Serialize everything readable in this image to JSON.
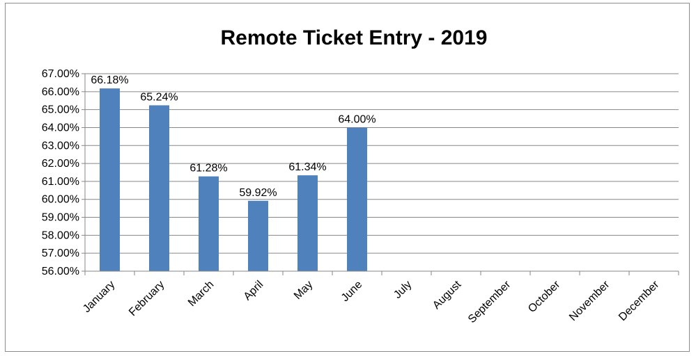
{
  "chart_data": {
    "type": "bar",
    "title": "Remote Ticket Entry - 2019",
    "xlabel": "",
    "ylabel": "",
    "categories": [
      "January",
      "February",
      "March",
      "April",
      "May",
      "June",
      "July",
      "August",
      "September",
      "October",
      "November",
      "December"
    ],
    "values": [
      66.18,
      65.24,
      61.28,
      59.92,
      61.34,
      64.0,
      null,
      null,
      null,
      null,
      null,
      null
    ],
    "data_labels": [
      "66.18%",
      "65.24%",
      "61.28%",
      "59.92%",
      "61.34%",
      "64.00%",
      "",
      "",
      "",
      "",
      "",
      ""
    ],
    "ylim": [
      56,
      67
    ],
    "y_ticks": [
      56,
      57,
      58,
      59,
      60,
      61,
      62,
      63,
      64,
      65,
      66,
      67
    ],
    "y_tick_labels": [
      "56.00%",
      "57.00%",
      "58.00%",
      "59.00%",
      "60.00%",
      "61.00%",
      "62.00%",
      "63.00%",
      "64.00%",
      "65.00%",
      "66.00%",
      "67.00%"
    ],
    "grid": true,
    "legend": "none",
    "colors": {
      "bar": "#4f81bd",
      "grid": "#868686",
      "axis": "#868686",
      "frame": "#8c8c8c"
    }
  }
}
